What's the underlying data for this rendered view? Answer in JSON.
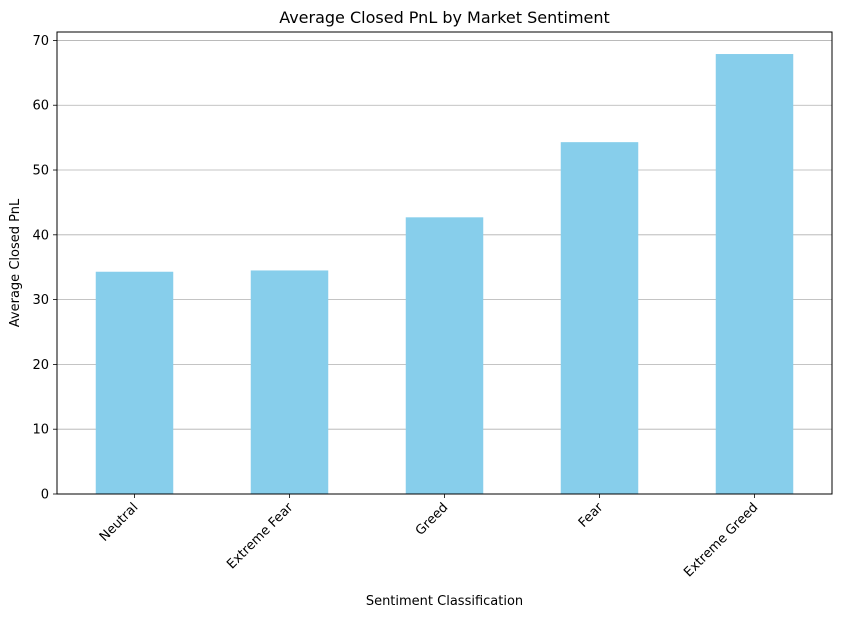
{
  "chart_data": {
    "type": "bar",
    "title": "Average Closed PnL by Market Sentiment",
    "xlabel": "Sentiment Classification",
    "ylabel": "Average Closed PnL",
    "categories": [
      "Neutral",
      "Extreme Fear",
      "Greed",
      "Fear",
      "Extreme Greed"
    ],
    "values": [
      34.3,
      34.5,
      42.7,
      54.3,
      67.9
    ],
    "ylim": [
      0,
      71.3
    ],
    "yticks": [
      0,
      10,
      20,
      30,
      40,
      50,
      60,
      70
    ],
    "bar_color": "#87ceeb",
    "grid": "y-axis only",
    "legend": "none"
  }
}
